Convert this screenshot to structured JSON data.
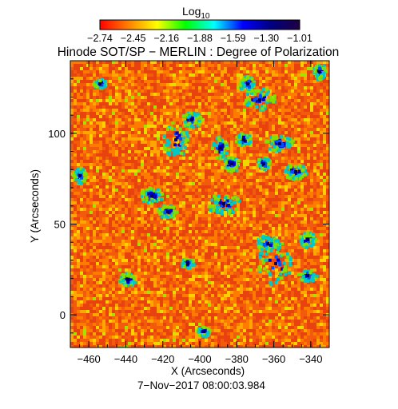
{
  "colorbar": {
    "label_main": "Log",
    "label_sub": "10",
    "ticks": [
      "−2.74",
      "−2.45",
      "−2.16",
      "−1.88",
      "−1.59",
      "−1.30",
      "−1.01"
    ],
    "scale_min": -2.74,
    "scale_max": -1.01,
    "colors": [
      "#ff0000",
      "#ff8000",
      "#ffff00",
      "#00ff00",
      "#00ffff",
      "#0000ff",
      "#000080",
      "#200040"
    ]
  },
  "title": "Hinode SOT/SP − MERLIN : Degree of Polarization",
  "x_axis": {
    "label": "X (Arcseconds)",
    "range": [
      -470,
      -330
    ],
    "ticks": [
      -460,
      -440,
      -420,
      -400,
      -380,
      -360,
      -340
    ],
    "tick_labels": [
      "−460",
      "−440",
      "−420",
      "−400",
      "−380",
      "−360",
      "−340"
    ]
  },
  "y_axis": {
    "label": "Y (Arcseconds)",
    "range": [
      -18,
      140
    ],
    "ticks": [
      0,
      50,
      100
    ],
    "tick_labels": [
      "0",
      "50",
      "100"
    ]
  },
  "timestamp": "7−Nov−2017 08:00:03.984",
  "map": {
    "background_colors": [
      "#e8420e",
      "#f25a0c",
      "#ff7b00",
      "#ffa600",
      "#ffd000",
      "#e0e000",
      "#a8e000"
    ],
    "patch_colors": [
      "#80e000",
      "#00c8c8",
      "#0050ff",
      "#0000c0",
      "#000060"
    ]
  }
}
